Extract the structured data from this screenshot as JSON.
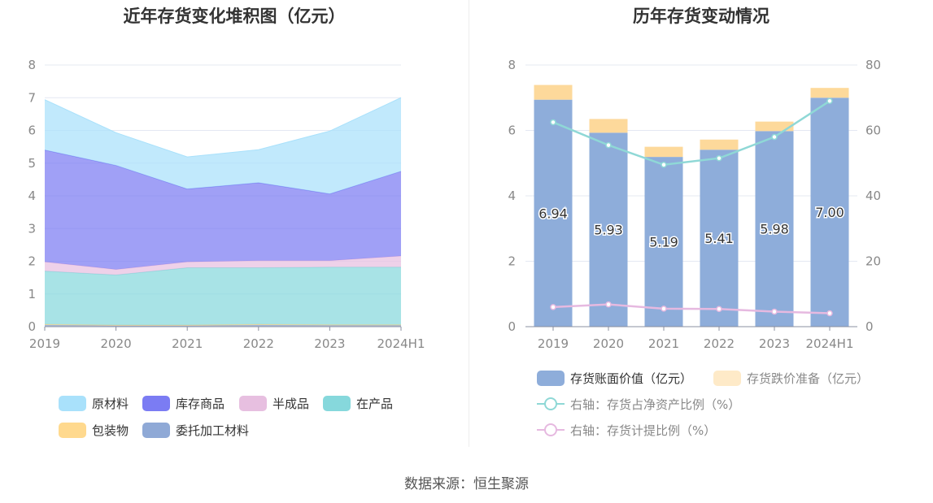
{
  "charts": {
    "left_title": "近年存货变化堆积图（亿元）",
    "right_title": "历年存货变动情况"
  },
  "source": "数据来源：恒生聚源",
  "chart_data": [
    {
      "type": "area",
      "stacked": true,
      "title": "近年存货变化堆积图（亿元）",
      "categories": [
        "2019",
        "2020",
        "2021",
        "2022",
        "2023",
        "2024H1"
      ],
      "ylim": [
        0,
        8
      ],
      "yticks": [
        0,
        1,
        2,
        3,
        4,
        5,
        6,
        7,
        8
      ],
      "grid": true,
      "legend_position": "bottom",
      "series": [
        {
          "name": "委托加工材料",
          "color": "#8fa9d6",
          "values": [
            0.05,
            0.03,
            0.03,
            0.05,
            0.04,
            0.04
          ]
        },
        {
          "name": "包装物",
          "color": "#ffd98e",
          "values": [
            0.02,
            0.02,
            0.02,
            0.02,
            0.02,
            0.02
          ]
        },
        {
          "name": "在产品",
          "color": "#86d8dc",
          "values": [
            1.63,
            1.53,
            1.75,
            1.73,
            1.76,
            1.76
          ]
        },
        {
          "name": "半成品",
          "color": "#e7bfe0",
          "values": [
            0.28,
            0.17,
            0.18,
            0.22,
            0.2,
            0.34
          ]
        },
        {
          "name": "库存商品",
          "color": "#7b7cf3",
          "values": [
            3.42,
            3.18,
            2.23,
            2.38,
            2.04,
            2.59
          ]
        },
        {
          "name": "原材料",
          "color": "#a9e1fb",
          "values": [
            1.54,
            1.0,
            0.98,
            1.01,
            1.92,
            2.25
          ]
        }
      ],
      "legend_order": [
        "原材料",
        "库存商品",
        "半成品",
        "在产品",
        "包装物",
        "委托加工材料"
      ]
    },
    {
      "type": "bar",
      "stacked": true,
      "title": "历年存货变动情况",
      "categories": [
        "2019",
        "2020",
        "2021",
        "2022",
        "2023",
        "2024H1"
      ],
      "ylim": [
        0,
        8
      ],
      "yticks": [
        0,
        2,
        4,
        6,
        8
      ],
      "y2lim": [
        0,
        80
      ],
      "y2ticks": [
        0,
        20,
        40,
        60,
        80
      ],
      "grid": true,
      "legend_position": "bottom",
      "series": [
        {
          "name": "存货账面价值（亿元）",
          "color": "#8eadda",
          "values": [
            6.94,
            5.93,
            5.19,
            5.41,
            5.98,
            7.0
          ],
          "labels": [
            "6.94",
            "5.93",
            "5.19",
            "5.41",
            "5.98",
            "7.00"
          ]
        },
        {
          "name": "存货跌价准备（亿元）",
          "color": "#fdd99b",
          "values": [
            0.45,
            0.42,
            0.31,
            0.31,
            0.29,
            0.3
          ]
        }
      ],
      "line_series": [
        {
          "name": "右轴：存货占净资产比例（%）",
          "color": "#8fd8d6",
          "axis": "right",
          "values": [
            62.5,
            55.5,
            49.5,
            51.5,
            58.0,
            69.0
          ]
        },
        {
          "name": "右轴：存货计提比例（%）",
          "color": "#e6b9e0",
          "axis": "right",
          "values": [
            6.0,
            6.8,
            5.5,
            5.4,
            4.6,
            4.1
          ]
        }
      ]
    }
  ]
}
